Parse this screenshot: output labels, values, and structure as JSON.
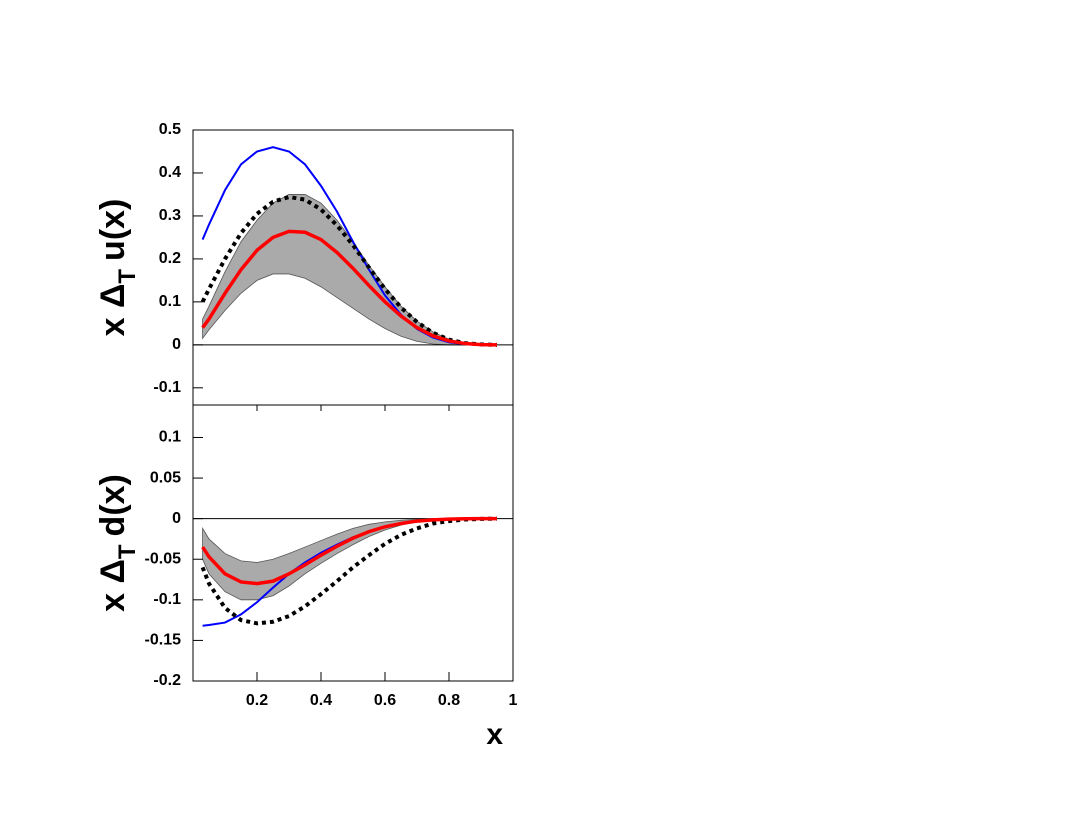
{
  "chart_data": [
    {
      "type": "line",
      "ylabel": [
        "x Δ",
        "T",
        "u(x)"
      ],
      "xlim": [
        0,
        1
      ],
      "ylim": [
        -0.14,
        0.5
      ],
      "yticks": [
        -0.1,
        0,
        0.1,
        0.2,
        0.3,
        0.4,
        0.5
      ],
      "zero_line": true,
      "x": [
        0.03,
        0.05,
        0.1,
        0.15,
        0.2,
        0.25,
        0.3,
        0.35,
        0.4,
        0.45,
        0.5,
        0.55,
        0.6,
        0.65,
        0.7,
        0.75,
        0.8,
        0.85,
        0.9,
        0.95
      ],
      "band": {
        "color": "#aaaaaa",
        "upper": [
          0.06,
          0.09,
          0.17,
          0.24,
          0.29,
          0.33,
          0.35,
          0.35,
          0.33,
          0.29,
          0.24,
          0.185,
          0.135,
          0.09,
          0.055,
          0.03,
          0.013,
          0.004,
          0.001,
          0
        ],
        "lower": [
          0.015,
          0.035,
          0.08,
          0.12,
          0.15,
          0.165,
          0.165,
          0.155,
          0.135,
          0.11,
          0.085,
          0.06,
          0.038,
          0.02,
          0.008,
          0.002,
          0,
          0,
          0,
          0
        ]
      },
      "series": [
        {
          "color": "#0000ff",
          "style": "solid",
          "width": 2,
          "values": [
            0.245,
            0.28,
            0.36,
            0.42,
            0.45,
            0.46,
            0.45,
            0.42,
            0.37,
            0.31,
            0.24,
            0.175,
            0.115,
            0.07,
            0.037,
            0.017,
            0.006,
            0.0015,
            0.0002,
            0
          ]
        },
        {
          "color": "#000000",
          "style": "dotted",
          "width": 4,
          "values": [
            0.1,
            0.13,
            0.2,
            0.26,
            0.305,
            0.333,
            0.344,
            0.338,
            0.315,
            0.278,
            0.232,
            0.18,
            0.13,
            0.087,
            0.053,
            0.028,
            0.012,
            0.004,
            0.001,
            0
          ]
        },
        {
          "color": "#ff0000",
          "style": "solid",
          "width": 3.5,
          "values": [
            0.04,
            0.06,
            0.12,
            0.175,
            0.22,
            0.25,
            0.264,
            0.262,
            0.245,
            0.215,
            0.178,
            0.138,
            0.1,
            0.067,
            0.04,
            0.021,
            0.009,
            0.003,
            0.0005,
            0
          ]
        }
      ]
    },
    {
      "type": "line",
      "ylabel": [
        "x Δ",
        "T",
        "d(x)"
      ],
      "xlabel": "x",
      "xlim": [
        0,
        1
      ],
      "ylim": [
        -0.2,
        0.14
      ],
      "xticks": [
        0.2,
        0.4,
        0.6,
        0.8,
        1
      ],
      "yticks": [
        -0.2,
        -0.15,
        -0.1,
        -0.05,
        0,
        0.05,
        0.1
      ],
      "zero_line": true,
      "x": [
        0.03,
        0.05,
        0.1,
        0.15,
        0.2,
        0.25,
        0.3,
        0.35,
        0.4,
        0.45,
        0.5,
        0.55,
        0.6,
        0.65,
        0.7,
        0.75,
        0.8,
        0.85,
        0.9,
        0.95
      ],
      "band": {
        "color": "#aaaaaa",
        "upper": [
          -0.012,
          -0.025,
          -0.043,
          -0.052,
          -0.054,
          -0.05,
          -0.043,
          -0.035,
          -0.027,
          -0.019,
          -0.012,
          -0.007,
          -0.004,
          -0.002,
          -0.001,
          -0.0005,
          0,
          0,
          0,
          0
        ],
        "lower": [
          -0.05,
          -0.068,
          -0.09,
          -0.1,
          -0.1,
          -0.095,
          -0.083,
          -0.068,
          -0.055,
          -0.043,
          -0.032,
          -0.022,
          -0.014,
          -0.008,
          -0.004,
          -0.002,
          -0.0007,
          -0.0002,
          0,
          0
        ]
      },
      "series": [
        {
          "color": "#0000ff",
          "style": "solid",
          "width": 2,
          "values": [
            -0.132,
            -0.131,
            -0.128,
            -0.118,
            -0.103,
            -0.085,
            -0.068,
            -0.054,
            -0.042,
            -0.032,
            -0.023,
            -0.016,
            -0.01,
            -0.006,
            -0.003,
            -0.0015,
            -0.0006,
            -0.0002,
            0,
            0
          ]
        },
        {
          "color": "#000000",
          "style": "dotted",
          "width": 4,
          "values": [
            -0.06,
            -0.08,
            -0.11,
            -0.125,
            -0.129,
            -0.127,
            -0.12,
            -0.108,
            -0.093,
            -0.077,
            -0.06,
            -0.045,
            -0.031,
            -0.02,
            -0.012,
            -0.006,
            -0.003,
            -0.001,
            -0.0003,
            0
          ]
        },
        {
          "color": "#ff0000",
          "style": "solid",
          "width": 3.5,
          "values": [
            -0.035,
            -0.047,
            -0.068,
            -0.078,
            -0.08,
            -0.077,
            -0.068,
            -0.057,
            -0.045,
            -0.034,
            -0.024,
            -0.016,
            -0.01,
            -0.006,
            -0.003,
            -0.0015,
            -0.0006,
            -0.0002,
            0,
            0
          ]
        }
      ]
    }
  ]
}
